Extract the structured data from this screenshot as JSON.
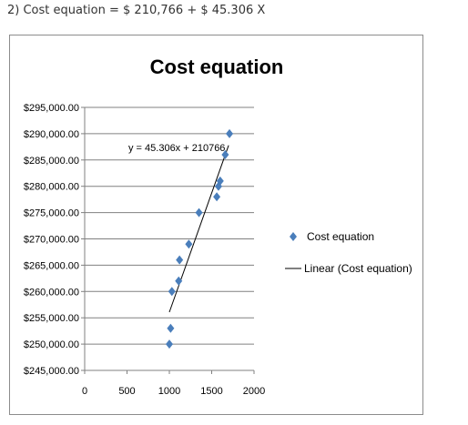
{
  "caption": "2) Cost equation = $ 210,766 + $ 45.306 X",
  "colors": {
    "marker": "#4a7ebb",
    "trendline": "#000000",
    "grid": "#808080"
  },
  "chart_data": {
    "type": "scatter",
    "title": "Cost equation",
    "xlabel": "",
    "ylabel": "",
    "xlim": [
      0,
      2000
    ],
    "ylim": [
      245000,
      295000
    ],
    "x_ticks": [
      "0",
      "500",
      "1000",
      "1500",
      "2000"
    ],
    "y_ticks": [
      "$245,000.00",
      "$250,000.00",
      "$255,000.00",
      "$260,000.00",
      "$265,000.00",
      "$270,000.00",
      "$275,000.00",
      "$280,000.00",
      "$285,000.00",
      "$290,000.00",
      "$295,000.00"
    ],
    "grid": "horizontal",
    "legend_position": "right",
    "series": [
      {
        "name": "Cost equation",
        "marker": "diamond",
        "points": [
          {
            "x": 1000,
            "y": 250000
          },
          {
            "x": 1015,
            "y": 253000
          },
          {
            "x": 1030,
            "y": 260000
          },
          {
            "x": 1110,
            "y": 262000
          },
          {
            "x": 1120,
            "y": 266000
          },
          {
            "x": 1230,
            "y": 269000
          },
          {
            "x": 1350,
            "y": 275000
          },
          {
            "x": 1560,
            "y": 278000
          },
          {
            "x": 1580,
            "y": 280000
          },
          {
            "x": 1600,
            "y": 281000
          },
          {
            "x": 1660,
            "y": 286000
          },
          {
            "x": 1710,
            "y": 290000
          }
        ]
      },
      {
        "name": "Linear (Cost equation)",
        "type": "trendline",
        "slope": 45.306,
        "intercept": 210766,
        "x_range": [
          1000,
          1700
        ]
      }
    ],
    "annotation": "y = 45.306x + 210766"
  }
}
